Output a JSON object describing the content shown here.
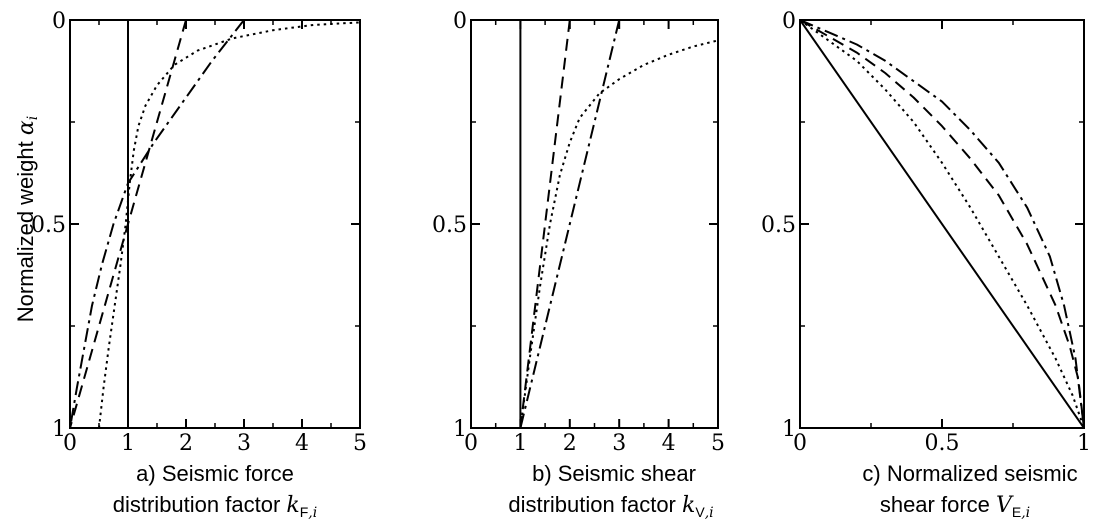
{
  "y_axis_label": {
    "text": "Normalized weight ",
    "symbol": "α",
    "subscript": "i"
  },
  "chart_data": [
    {
      "id": "a",
      "type": "line",
      "xlim": [
        0,
        5
      ],
      "ylim": [
        1,
        0
      ],
      "y_inverted": true,
      "xticks": [
        0,
        1,
        2,
        3,
        4,
        5
      ],
      "xtick_labels": [
        "0",
        "1",
        "2",
        "3",
        "4",
        "5"
      ],
      "yticks": [
        0,
        0.5,
        1
      ],
      "ytick_labels": [
        "0",
        "0.5",
        "1"
      ],
      "caption_line1": "a) Seismic force",
      "caption_line2_text": "distribution factor ",
      "caption_symbol": "k",
      "caption_sub_upright": "F",
      "caption_sub_italic": ",i",
      "grid": false,
      "series": [
        {
          "style": "solid",
          "points": [
            [
              1,
              0
            ],
            [
              1,
              1
            ]
          ]
        },
        {
          "style": "dashed",
          "points": [
            [
              2,
              0
            ],
            [
              0,
              1
            ]
          ]
        },
        {
          "style": "dashdot",
          "points": [
            [
              3,
              0
            ],
            [
              2.45,
              0.1
            ],
            [
              1.95,
              0.2
            ],
            [
              1.45,
              0.3
            ],
            [
              1.0,
              0.4
            ],
            [
              0.75,
              0.5
            ],
            [
              0.55,
              0.6
            ],
            [
              0.38,
              0.7
            ],
            [
              0.25,
              0.8
            ],
            [
              0.12,
              0.9
            ],
            [
              0,
              1
            ]
          ]
        },
        {
          "style": "dotted",
          "points": [
            [
              0.5,
              1.0
            ],
            [
              0.58,
              0.9
            ],
            [
              0.67,
              0.8
            ],
            [
              0.77,
              0.7
            ],
            [
              0.87,
              0.6
            ],
            [
              0.96,
              0.5
            ],
            [
              1.03,
              0.4
            ],
            [
              1.1,
              0.32
            ],
            [
              1.18,
              0.26
            ],
            [
              1.3,
              0.21
            ],
            [
              1.5,
              0.16
            ],
            [
              1.8,
              0.11
            ],
            [
              2.2,
              0.075
            ],
            [
              2.8,
              0.045
            ],
            [
              3.5,
              0.025
            ],
            [
              4.2,
              0.012
            ],
            [
              5,
              0.006
            ]
          ]
        }
      ]
    },
    {
      "id": "b",
      "type": "line",
      "xlim": [
        0,
        5
      ],
      "ylim": [
        1,
        0
      ],
      "y_inverted": true,
      "xticks": [
        0,
        1,
        2,
        3,
        4,
        5
      ],
      "xtick_labels": [
        "0",
        "1",
        "2",
        "3",
        "4",
        "5"
      ],
      "yticks": [
        0,
        0.5,
        1
      ],
      "ytick_labels": [
        "0",
        "0.5",
        "1"
      ],
      "caption_line1": "b) Seismic shear",
      "caption_line2_text": "distribution factor ",
      "caption_symbol": "k",
      "caption_sub_upright": "V",
      "caption_sub_italic": ",i",
      "grid": false,
      "series": [
        {
          "style": "solid",
          "points": [
            [
              1,
              0
            ],
            [
              1,
              1
            ]
          ]
        },
        {
          "style": "dashed",
          "points": [
            [
              2,
              0
            ],
            [
              1,
              1
            ]
          ]
        },
        {
          "style": "dashdot",
          "points": [
            [
              3,
              0
            ],
            [
              1,
              1
            ]
          ]
        },
        {
          "style": "dotted",
          "points": [
            [
              1.0,
              1.0
            ],
            [
              1.2,
              0.82
            ],
            [
              1.4,
              0.65
            ],
            [
              1.6,
              0.5
            ],
            [
              1.8,
              0.38
            ],
            [
              2.0,
              0.3
            ],
            [
              2.2,
              0.24
            ],
            [
              2.6,
              0.18
            ],
            [
              3.0,
              0.145
            ],
            [
              3.5,
              0.11
            ],
            [
              4.0,
              0.085
            ],
            [
              4.5,
              0.065
            ],
            [
              5,
              0.05
            ]
          ]
        }
      ]
    },
    {
      "id": "c",
      "type": "line",
      "xlim": [
        0,
        1
      ],
      "ylim": [
        1,
        0
      ],
      "y_inverted": true,
      "xticks": [
        0,
        0.5,
        1
      ],
      "xtick_labels": [
        "0",
        "0.5",
        "1"
      ],
      "yticks": [
        0,
        0.5,
        1
      ],
      "ytick_labels": [
        "0",
        "0.5",
        "1"
      ],
      "caption_line1": "c) Normalized seismic",
      "caption_line2_text": "shear force ",
      "caption_symbol": "V",
      "caption_sub_upright": "E",
      "caption_sub_italic": ",i",
      "grid": false,
      "series": [
        {
          "style": "solid",
          "points": [
            [
              0,
              0
            ],
            [
              1,
              1
            ]
          ]
        },
        {
          "style": "dashed",
          "points": [
            [
              0,
              0
            ],
            [
              0.1,
              0.04
            ],
            [
              0.2,
              0.08
            ],
            [
              0.3,
              0.13
            ],
            [
              0.4,
              0.19
            ],
            [
              0.5,
              0.26
            ],
            [
              0.6,
              0.34
            ],
            [
              0.7,
              0.43
            ],
            [
              0.8,
              0.55
            ],
            [
              0.9,
              0.7
            ],
            [
              0.95,
              0.8
            ],
            [
              0.98,
              0.88
            ],
            [
              1,
              1
            ]
          ]
        },
        {
          "style": "dashdot",
          "points": [
            [
              0,
              0
            ],
            [
              0.1,
              0.03
            ],
            [
              0.2,
              0.06
            ],
            [
              0.3,
              0.1
            ],
            [
              0.4,
              0.15
            ],
            [
              0.5,
              0.2
            ],
            [
              0.6,
              0.27
            ],
            [
              0.7,
              0.35
            ],
            [
              0.8,
              0.46
            ],
            [
              0.88,
              0.58
            ],
            [
              0.93,
              0.7
            ],
            [
              0.97,
              0.83
            ],
            [
              1,
              1
            ]
          ]
        },
        {
          "style": "dotted",
          "points": [
            [
              0,
              0
            ],
            [
              0.1,
              0.05
            ],
            [
              0.2,
              0.1
            ],
            [
              0.3,
              0.17
            ],
            [
              0.4,
              0.25
            ],
            [
              0.5,
              0.35
            ],
            [
              0.6,
              0.46
            ],
            [
              0.7,
              0.58
            ],
            [
              0.8,
              0.7
            ],
            [
              0.9,
              0.83
            ],
            [
              0.96,
              0.92
            ],
            [
              1,
              1
            ]
          ]
        }
      ]
    }
  ]
}
